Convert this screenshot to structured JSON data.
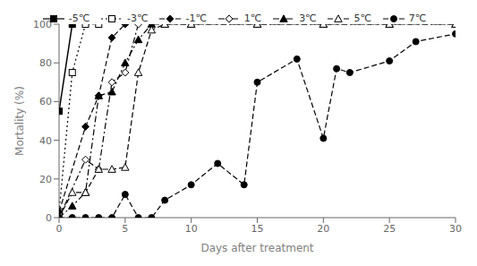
{
  "chart_data": {
    "type": "line",
    "xlabel": "Days after treatment",
    "ylabel": "Mortality (%)",
    "xlim": [
      0,
      30
    ],
    "ylim": [
      0,
      100
    ],
    "xticks": [
      0,
      5,
      10,
      15,
      20,
      25,
      30
    ],
    "yticks": [
      0,
      20,
      40,
      60,
      80,
      100
    ],
    "grid": false,
    "legend": "top",
    "series": [
      {
        "name": "-5℃",
        "color": "black",
        "marker": "square",
        "line_style": "solid",
        "x": [
          0,
          1
        ],
        "values": [
          55,
          100
        ]
      },
      {
        "name": "-3℃",
        "color": "black",
        "marker": "square-open",
        "line_style": "dotted",
        "x": [
          0,
          1,
          2,
          3
        ],
        "values": [
          3,
          75,
          100,
          100
        ]
      },
      {
        "name": "-1℃",
        "color": "black",
        "marker": "diamond",
        "line_style": "dashed",
        "x": [
          0,
          2,
          3,
          4,
          5
        ],
        "values": [
          3,
          47,
          63,
          93,
          100
        ]
      },
      {
        "name": "1℃",
        "color": "black",
        "marker": "diamond-open",
        "line_style": "dashdot",
        "x": [
          0,
          2,
          3,
          4,
          5,
          6
        ],
        "values": [
          0,
          30,
          25,
          70,
          75,
          100
        ]
      },
      {
        "name": "3℃",
        "color": "black",
        "marker": "triangle",
        "line_style": "dashdot",
        "x": [
          0,
          1,
          2,
          3,
          4,
          5,
          6,
          7,
          8,
          10,
          15,
          20,
          25,
          30
        ],
        "values": [
          0,
          6,
          13,
          63,
          65,
          80,
          92,
          100,
          100,
          100,
          100,
          100,
          100,
          100
        ]
      },
      {
        "name": "5℃",
        "color": "black",
        "marker": "triangle-open",
        "line_style": "dashed",
        "x": [
          0,
          1,
          2,
          3,
          4,
          5,
          6,
          7,
          8,
          10,
          15,
          20,
          25,
          30
        ],
        "values": [
          0,
          13,
          13,
          25,
          25,
          26,
          75,
          97,
          100,
          100,
          100,
          100,
          100,
          100
        ]
      },
      {
        "name": "7℃",
        "color": "black",
        "marker": "circle",
        "line_style": "dashed",
        "x": [
          0,
          1,
          2,
          3,
          4,
          5,
          6,
          7,
          8,
          10,
          12,
          14,
          15,
          18,
          20,
          21,
          22,
          25,
          27,
          30
        ],
        "values": [
          0,
          0,
          0,
          0,
          0,
          12,
          0,
          0,
          9,
          17,
          28,
          17,
          70,
          82,
          41,
          77,
          75,
          81,
          91,
          95
        ]
      }
    ]
  }
}
